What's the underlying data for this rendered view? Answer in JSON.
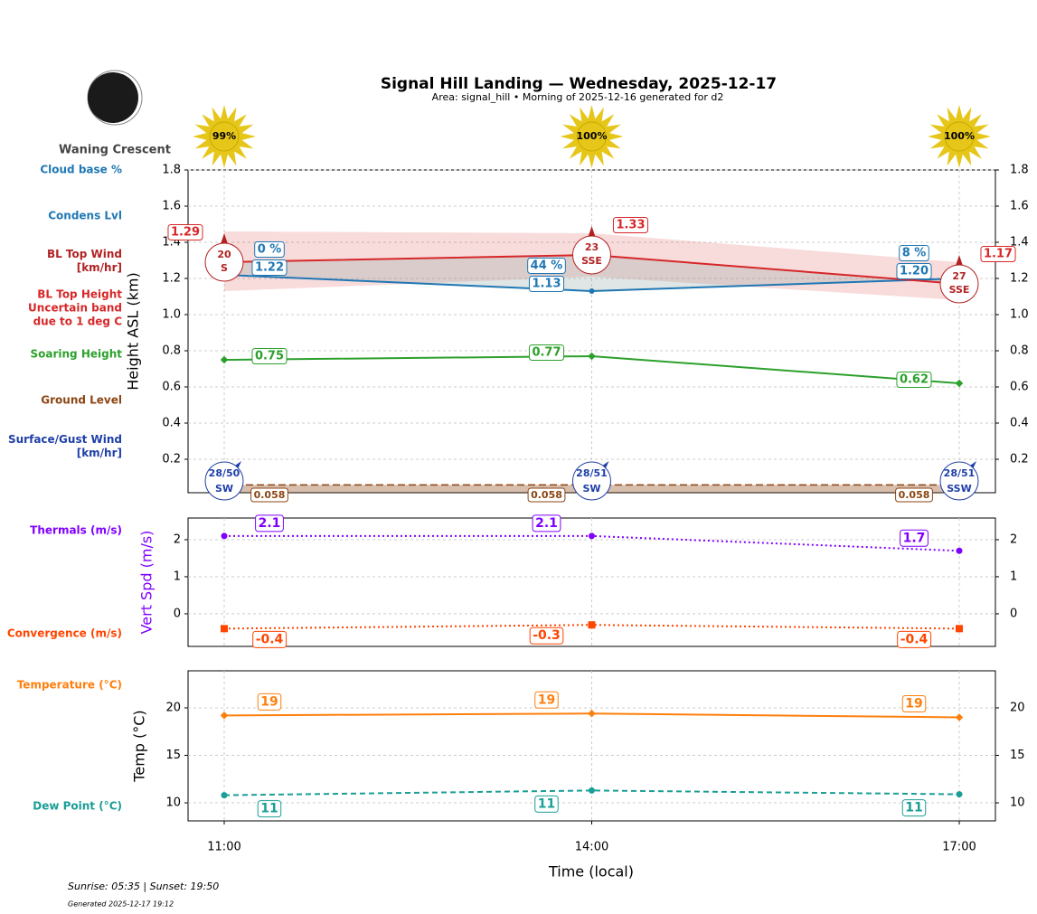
{
  "chart_data": [
    {
      "type": "line",
      "title": "Signal Hill Landing — Wednesday, 2025-12-17",
      "subtitle": "Area: signal_hill • Morning of 2025-12-16 generated for d2",
      "moon_phase": "Waning Crescent",
      "sun": {
        "values": [
          99,
          100,
          100
        ],
        "value_labels": [
          "99%",
          "100%",
          "100%"
        ]
      },
      "ylabel": "Height ASL (km)",
      "ylim": [
        0.015,
        1.8
      ],
      "yticks": [
        0.2,
        0.4,
        0.6,
        0.8,
        {
          "value": 1,
          "label": "1.0"
        },
        1.2,
        1.4,
        1.6,
        1.8
      ],
      "grid": true,
      "cloud_base": {
        "name": "Cloud base %",
        "color": "#1f77b4",
        "values": [
          0,
          44,
          8
        ],
        "value_labels": [
          "0 %",
          "44 %",
          "8 %"
        ]
      },
      "condensation": {
        "name": "Condens Lvl",
        "color": "#1f77b4",
        "values": [
          1.22,
          1.13,
          1.2
        ],
        "value_labels": [
          "1.22",
          "1.13",
          "1.20"
        ]
      },
      "bl_top_wind": {
        "name": "BL Top Wind [km/hr]",
        "color": "#b22222",
        "values": [
          20,
          23,
          27
        ],
        "direction": [
          "S",
          "SSE",
          "SSE"
        ]
      },
      "bl_top": {
        "name": "BL Top Height Uncertain band due to 1 deg C",
        "color": "#d62728",
        "values": [
          1.29,
          1.33,
          1.17
        ],
        "band_low": [
          1.13,
          1.21,
          1.08
        ],
        "band_high": [
          1.46,
          1.45,
          1.29
        ]
      },
      "soaring": {
        "name": "Soaring Height",
        "color": "#2ca02c",
        "values": [
          0.75,
          0.77,
          0.62
        ]
      },
      "ground": {
        "name": "Ground Level",
        "color": "#8b4513",
        "values": [
          0.058,
          0.058,
          0.058
        ]
      },
      "surface_wind": {
        "name": "Surface/Gust Wind [km/hr]",
        "color": "#1f3fa8",
        "values": [
          28,
          28,
          28
        ],
        "gust": [
          50,
          51,
          51
        ],
        "value_labels": [
          "28/50",
          "28/51",
          "28/51"
        ],
        "direction": [
          "SW",
          "SW",
          "SSW"
        ]
      }
    },
    {
      "type": "line",
      "ylabel": "Vert Spd (m/s)",
      "ylabel_color": "#7f00ff",
      "ylim": [
        -0.88,
        2.585
      ],
      "yticks": [
        0,
        1,
        2
      ],
      "grid": true,
      "series": [
        {
          "name": "Thermals (m/s)",
          "color": "#8000ff",
          "values": [
            2.1,
            2.1,
            1.7
          ],
          "marker": "circle"
        },
        {
          "name": "Convergence (m/s)",
          "color": "#ff4500",
          "values": [
            -0.4,
            -0.3,
            -0.4
          ],
          "marker": "square"
        }
      ]
    },
    {
      "type": "line",
      "ylabel": "Temp (°C)",
      "xlabel": "Time (local)",
      "categories": [
        "11:00",
        "14:00",
        "17:00"
      ],
      "ylim": [
        8.1,
        23.9
      ],
      "yticks": [
        10,
        15,
        20
      ],
      "grid": true,
      "series": [
        {
          "name": "Temperature (°C)",
          "color": "#ff7f0e",
          "values": [
            19.2,
            19.4,
            19.0
          ],
          "value_labels": [
            "19",
            "19",
            "19"
          ],
          "marker": "diamond"
        },
        {
          "name": "Dew Point (°C)",
          "color": "#1a9e96",
          "values": [
            10.8,
            11.3,
            10.9
          ],
          "value_labels": [
            "11",
            "11",
            "11"
          ],
          "marker": "circle",
          "dashed": true
        }
      ]
    }
  ],
  "notes": {
    "sun_times": "Sunrise: 05:35 | Sunset: 19:50",
    "generated": "Generated 2025-12-17 19:12"
  }
}
